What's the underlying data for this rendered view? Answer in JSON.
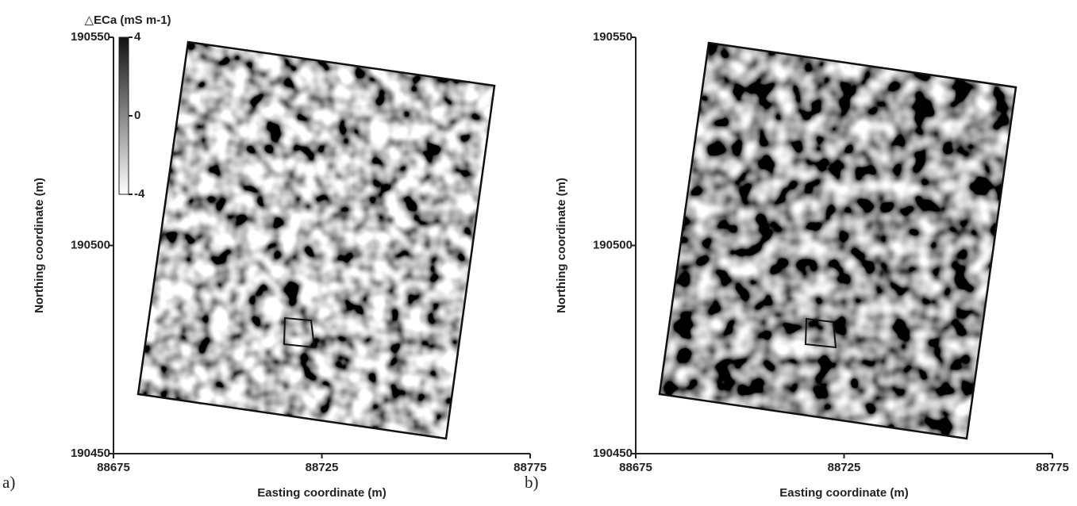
{
  "chart_data": [
    {
      "type": "map",
      "label": "a)",
      "xlabel": "Easting coordinate (m)",
      "ylabel": "Northing coordinate (m)",
      "xlim": [
        88675,
        88775
      ],
      "ylim": [
        190450,
        190550
      ],
      "xticks": [
        88675,
        88725,
        88775
      ],
      "yticks": [
        190450,
        190500,
        190550
      ],
      "colorbar": {
        "label": "△ECa (mS m-1)",
        "lim": [
          -4,
          4
        ],
        "ticks": [
          4,
          0,
          -4
        ]
      }
    },
    {
      "type": "map",
      "label": "b)",
      "xlabel": "Easting coordinate (m)",
      "ylabel": "Northing coordinate (m)",
      "xlim": [
        88675,
        88775
      ],
      "ylim": [
        190450,
        190550
      ],
      "xticks": [
        88675,
        88725,
        88775
      ],
      "yticks": [
        190450,
        190500,
        190550
      ]
    }
  ]
}
